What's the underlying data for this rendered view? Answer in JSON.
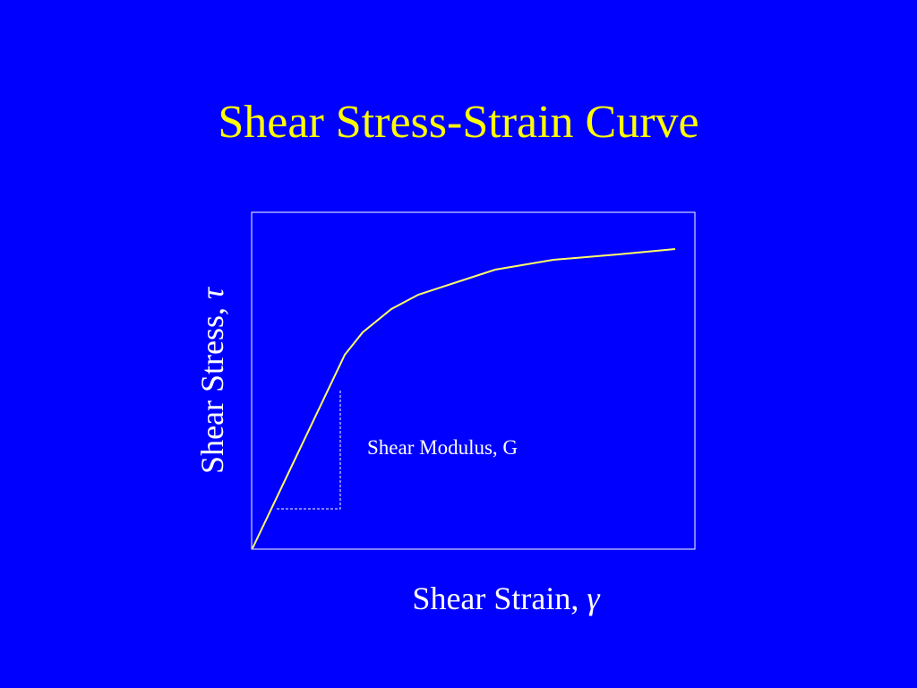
{
  "title": "Shear Stress-Strain Curve",
  "y_axis": {
    "label": "Shear Stress,",
    "symbol": "τ"
  },
  "x_axis": {
    "label": "Shear Strain,",
    "symbol": "γ"
  },
  "annotation": "Shear Modulus, G"
}
